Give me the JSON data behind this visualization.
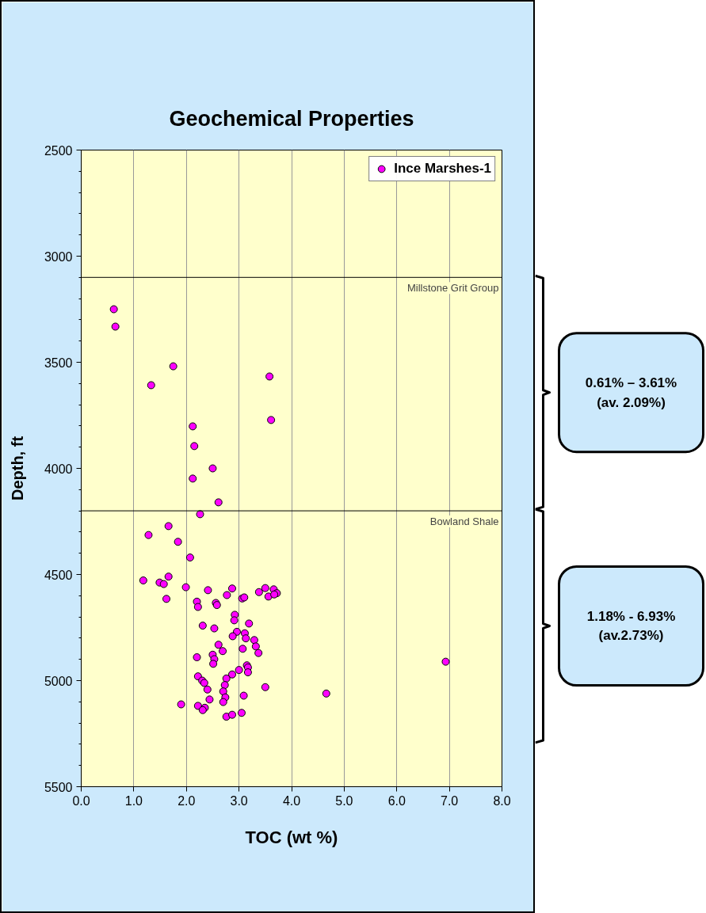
{
  "chart_data": {
    "type": "scatter",
    "title": "Geochemical Properties",
    "xlabel": "TOC (wt %)",
    "ylabel": "Depth, ft",
    "xlim": [
      0,
      8
    ],
    "xticks": [
      {
        "value": 0,
        "label": "0.0"
      },
      {
        "value": 1,
        "label": "1.0"
      },
      {
        "value": 2,
        "label": "2.0"
      },
      {
        "value": 3,
        "label": "3.0"
      },
      {
        "value": 4,
        "label": "4.0"
      },
      {
        "value": 5,
        "label": "5.0"
      },
      {
        "value": 6,
        "label": "6.0"
      },
      {
        "value": 7,
        "label": "7.0"
      },
      {
        "value": 8,
        "label": "8.0"
      }
    ],
    "ylim": [
      5500,
      2500
    ],
    "yticks": [
      2500,
      3000,
      3500,
      4000,
      4500,
      5000,
      5500
    ],
    "grid": "x",
    "legend": "top right",
    "marker": "circle",
    "series": [
      {
        "name": "Ince Marshes-1",
        "color": "#ff00ff",
        "x": [
          0.62,
          0.65,
          1.75,
          1.33,
          3.58,
          3.61,
          2.12,
          2.15,
          2.5,
          2.12,
          2.61,
          2.26,
          1.66,
          1.28,
          1.84,
          2.07,
          1.18,
          1.49,
          1.57,
          1.66,
          1.99,
          1.62,
          2.41,
          2.77,
          2.87,
          3.06,
          3.1,
          3.38,
          3.5,
          3.56,
          3.66,
          3.72,
          3.67,
          2.2,
          2.22,
          2.56,
          2.58,
          2.92,
          2.91,
          3.19,
          2.31,
          2.53,
          2.96,
          2.88,
          3.11,
          3.13,
          3.29,
          3.32,
          3.37,
          3.07,
          2.61,
          2.69,
          2.5,
          2.53,
          2.51,
          2.2,
          3.15,
          3.17,
          3.17,
          3.0,
          2.87,
          2.76,
          2.22,
          2.3,
          2.34,
          2.4,
          2.73,
          2.7,
          2.74,
          2.7,
          3.09,
          3.5,
          2.44,
          1.9,
          2.22,
          2.35,
          2.31,
          2.76,
          2.87,
          3.05,
          4.66,
          6.93
        ],
        "values": [
          3250,
          3332,
          3519,
          3608,
          3567,
          3772,
          3802,
          3895,
          4000,
          4048,
          4160,
          4216,
          4272,
          4314,
          4346,
          4420,
          4528,
          4538,
          4545,
          4510,
          4560,
          4615,
          4574,
          4597,
          4566,
          4613,
          4608,
          4583,
          4564,
          4604,
          4570,
          4588,
          4594,
          4628,
          4653,
          4634,
          4644,
          4690,
          4716,
          4731,
          4741,
          4754,
          4770,
          4791,
          4777,
          4801,
          4809,
          4839,
          4870,
          4850,
          4831,
          4861,
          4878,
          4899,
          4921,
          4890,
          4928,
          4938,
          4961,
          4950,
          4971,
          4990,
          4980,
          5000,
          5011,
          5042,
          5021,
          5051,
          5079,
          5101,
          5071,
          5031,
          5089,
          5112,
          5119,
          5128,
          5139,
          5170,
          5161,
          5152,
          5061,
          4911
        ]
      }
    ],
    "ref_lines": [
      {
        "axis": "y",
        "value": 3100,
        "label": "Millstone Grit Group",
        "color": "#000000"
      },
      {
        "axis": "y",
        "value": 4200,
        "label": "Bowland Shale",
        "color": "#000000"
      }
    ],
    "annotations": [
      "0.61% – 3.61%\n(av. 2.09%)",
      "1.18% - 6.93%\n(av.2.73%)"
    ]
  }
}
